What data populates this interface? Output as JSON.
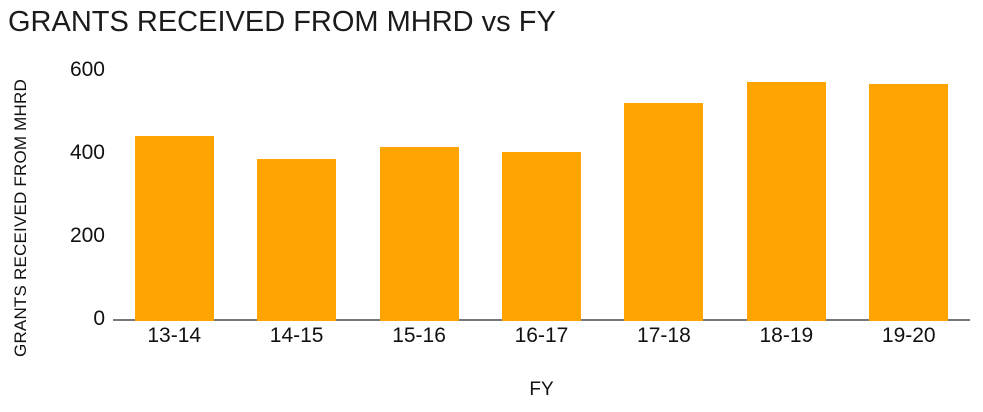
{
  "colors": {
    "bar": "#FFA400",
    "axis_line": "#77787B",
    "text": "#111111",
    "title_text": "#1B1B1B"
  },
  "chart_data": {
    "type": "bar",
    "title": "GRANTS RECEIVED FROM MHRD vs FY",
    "xlabel": "FY",
    "ylabel": "GRANTS RECEIVED FROM MHRD",
    "categories": [
      "13-14",
      "14-15",
      "15-16",
      "16-17",
      "17-18",
      "18-19",
      "19-20"
    ],
    "values": [
      445,
      390,
      420,
      408,
      525,
      577,
      572
    ],
    "ylim": [
      0,
      600
    ],
    "yticks": [
      0,
      200,
      400,
      600
    ],
    "grid": false,
    "legend": "none",
    "bar_color": "#FFA400"
  }
}
